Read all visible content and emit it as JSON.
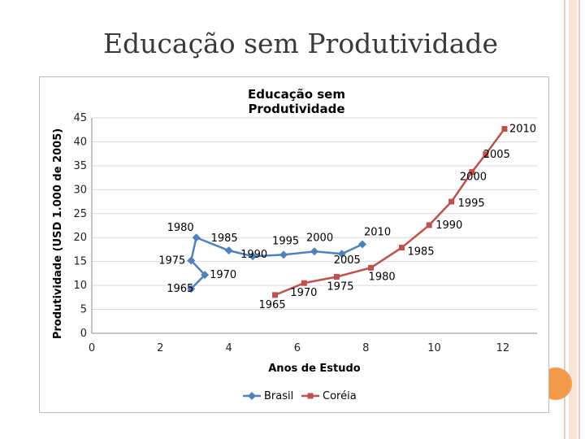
{
  "slide": {
    "title": "Educação sem Produtividade"
  },
  "colors": {
    "brasil": "#4f81bd",
    "coreia": "#c0504d",
    "grid": "#d9d9d9",
    "accent": "#f39b4b"
  },
  "chart_data": {
    "type": "scatter",
    "title": "Educação sem Produtividade",
    "xlabel": "Anos de Estudo",
    "ylabel": "Produtividade (USD 1.000 de 2005)",
    "xlim": [
      0,
      13
    ],
    "ylim": [
      0,
      45
    ],
    "xticks": [
      0,
      2,
      4,
      6,
      8,
      10,
      12
    ],
    "yticks": [
      0,
      5,
      10,
      15,
      20,
      25,
      30,
      35,
      40,
      45
    ],
    "grid": "horizontal",
    "legend_position": "bottom",
    "series": [
      {
        "name": "Brasil",
        "marker": "diamond",
        "points": [
          {
            "label": "1965",
            "x": 2.9,
            "y": 9.3
          },
          {
            "label": "1970",
            "x": 3.3,
            "y": 12.2
          },
          {
            "label": "1975",
            "x": 2.9,
            "y": 15.2
          },
          {
            "label": "1980",
            "x": 3.05,
            "y": 20.0
          },
          {
            "label": "1985",
            "x": 4.0,
            "y": 17.3
          },
          {
            "label": "1990",
            "x": 4.7,
            "y": 16.1
          },
          {
            "label": "1995",
            "x": 5.6,
            "y": 16.4
          },
          {
            "label": "2000",
            "x": 6.5,
            "y": 17.1
          },
          {
            "label": "2005",
            "x": 7.3,
            "y": 16.6
          },
          {
            "label": "2010",
            "x": 7.9,
            "y": 18.6
          }
        ]
      },
      {
        "name": "Coréia",
        "marker": "square",
        "points": [
          {
            "label": "1965",
            "x": 5.35,
            "y": 8.0
          },
          {
            "label": "1970",
            "x": 6.2,
            "y": 10.5
          },
          {
            "label": "1975",
            "x": 7.15,
            "y": 11.8
          },
          {
            "label": "1980",
            "x": 8.15,
            "y": 13.7
          },
          {
            "label": "1985",
            "x": 9.05,
            "y": 17.9
          },
          {
            "label": "1990",
            "x": 9.85,
            "y": 22.6
          },
          {
            "label": "1995",
            "x": 10.5,
            "y": 27.5
          },
          {
            "label": "2000",
            "x": 11.1,
            "y": 33.7
          },
          {
            "label": "2005",
            "x": 11.5,
            "y": 37.4
          },
          {
            "label": "2010",
            "x": 12.05,
            "y": 42.7
          }
        ]
      }
    ]
  }
}
